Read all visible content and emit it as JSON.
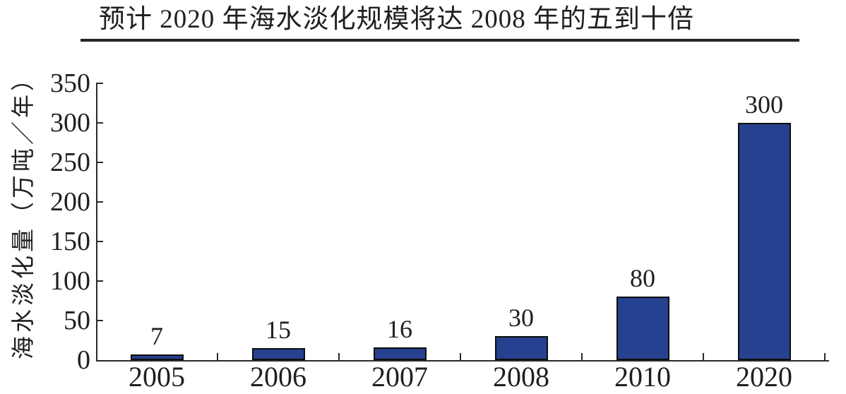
{
  "figure": {
    "title": "预计 2020 年海水淡化规模将达 2008 年的五到十倍"
  },
  "chart_data": {
    "type": "bar",
    "title": "预计 2020 年海水淡化规模将达 2008 年的五到十倍",
    "categories": [
      "2005",
      "2006",
      "2007",
      "2008",
      "2010",
      "2020"
    ],
    "values": [
      7,
      15,
      16,
      30,
      80,
      300
    ],
    "bar_value_labels": [
      "7",
      "15",
      "16",
      "30",
      "80",
      "300"
    ],
    "xlabel": "",
    "ylabel": "海水淡化量（万吨／年）",
    "ylim": [
      0,
      350
    ],
    "yticks": [
      0,
      50,
      100,
      150,
      200,
      250,
      300,
      350
    ],
    "grid": false,
    "legend": "none",
    "colors": {
      "bar_fill": "#25418F",
      "bar_border": "#0d0d0d",
      "axis": "#2a2a2a",
      "text": "#1f1f1f",
      "title_rule": "#252525"
    }
  }
}
